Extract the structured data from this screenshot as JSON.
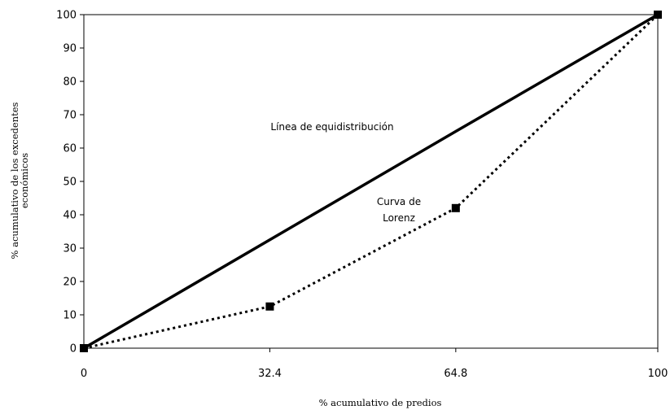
{
  "chart_data": {
    "type": "line",
    "xlabel": "% acumulativo  de predios",
    "ylabel": [
      "% acumulativo  de los excedentes",
      "económicos"
    ],
    "x_ticks": [
      0,
      32.4,
      64.8,
      100
    ],
    "x_tick_labels": [
      "0",
      "32.4",
      "64.8",
      "100"
    ],
    "y_ticks": [
      0,
      10,
      20,
      30,
      40,
      50,
      60,
      70,
      80,
      90,
      100
    ],
    "xlim": [
      0,
      100
    ],
    "ylim": [
      0,
      100
    ],
    "grid": false,
    "series": [
      {
        "name": "Línea de equidistribución",
        "style": "solid",
        "x": [
          0,
          64.8,
          100
        ],
        "y": [
          0,
          65,
          100
        ]
      },
      {
        "name": "Curva de Lorenz",
        "style": "dotted",
        "markers": "square",
        "x": [
          0,
          32.4,
          64.8,
          100
        ],
        "y": [
          0,
          12.5,
          42,
          100
        ]
      }
    ],
    "annotations": {
      "equidistribucion": "Línea de equidistribución",
      "lorenz_line1": "Curva de",
      "lorenz_line2": "Lorenz"
    },
    "colors": {
      "line": "#000000",
      "marker": "#000000"
    }
  }
}
